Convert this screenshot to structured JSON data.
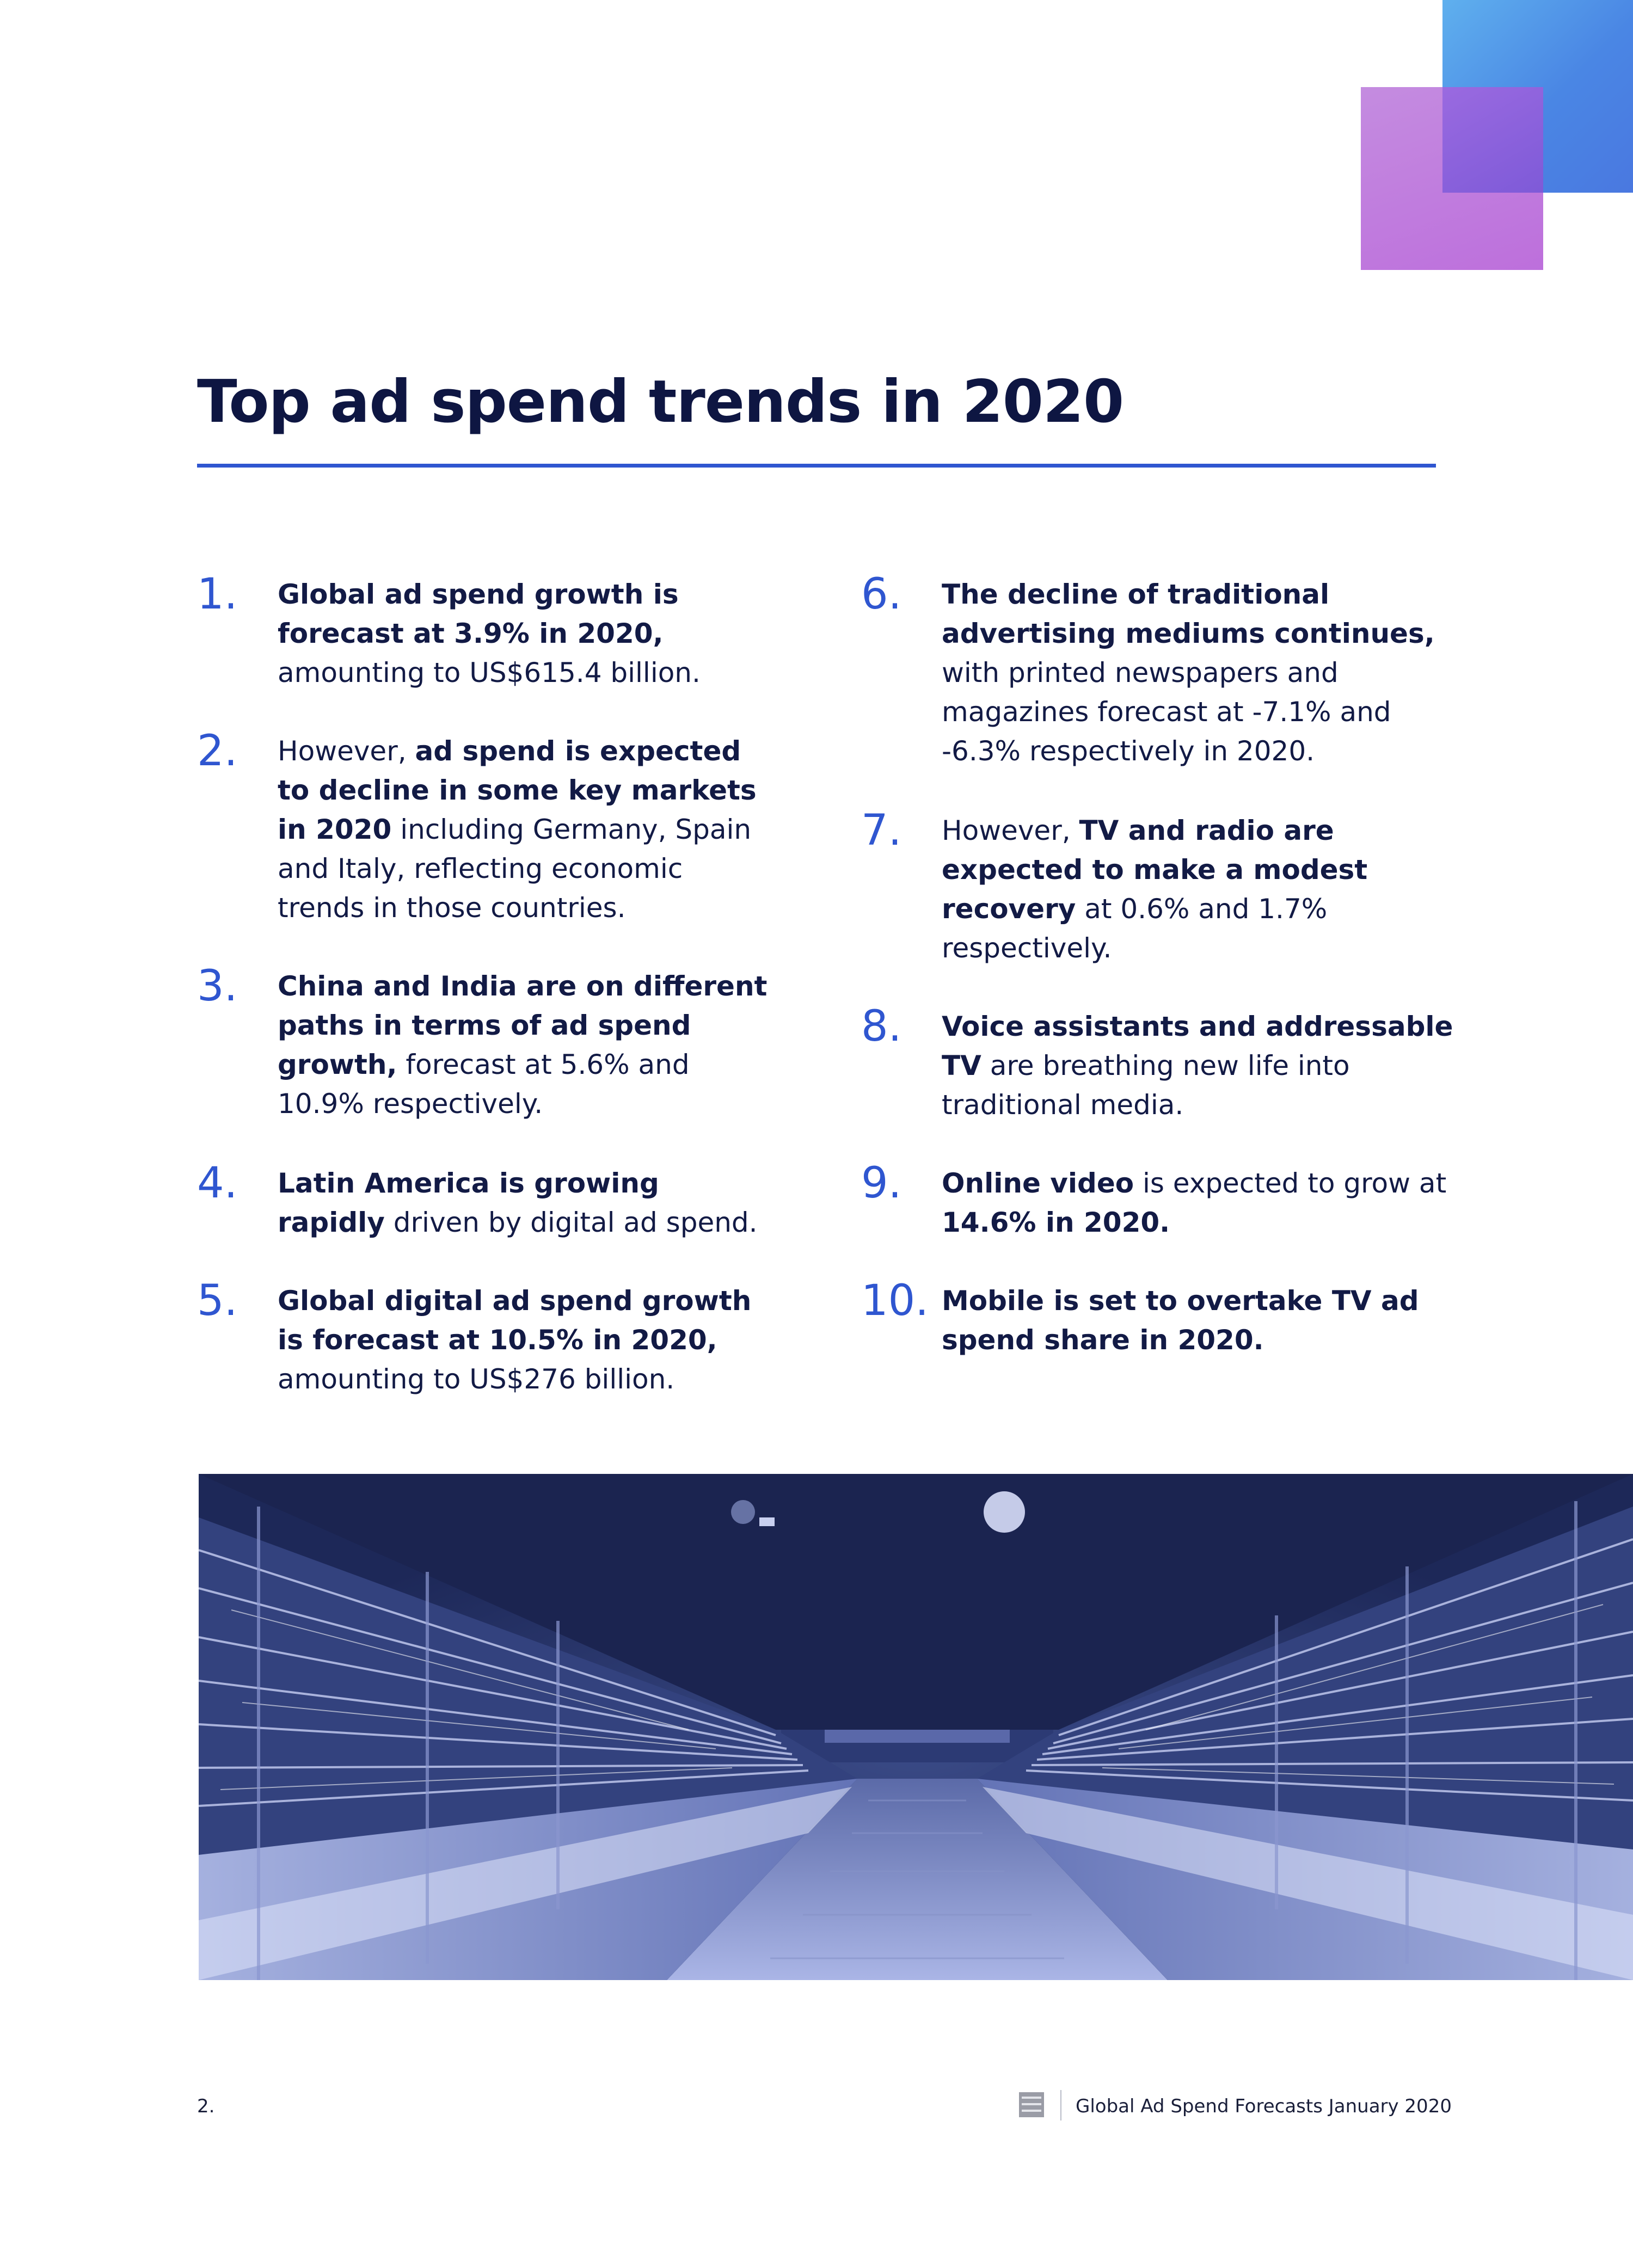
{
  "colors": {
    "accent_blue": "#2f56d0",
    "heading_navy": "#0e1642",
    "square_blue": "#4a86e4",
    "square_violet": "#bd6fdc",
    "photo_tint": "#1e2a5e"
  },
  "title": "Top ad spend trends in 2020",
  "trends": [
    {
      "number": "1.",
      "bold_a": "Global ad spend growth is forecast at 3.9% in 2020,",
      "text_a": " amounting to US$615.4 billion.",
      "bold_b": "",
      "text_b": ""
    },
    {
      "number": "2.",
      "pre": "However, ",
      "bold_a": "ad spend is expected to decline in some key markets in 2020",
      "text_a": " including Germany, Spain and Italy, reflecting economic trends in those countries.",
      "bold_b": "",
      "text_b": ""
    },
    {
      "number": "3.",
      "bold_a": "China and India are on different paths in terms of ad spend growth,",
      "text_a": " forecast at 5.6% and 10.9% respectively.",
      "bold_b": "",
      "text_b": ""
    },
    {
      "number": "4.",
      "bold_a": "Latin America is growing rapidly",
      "text_a": " driven by digital ad spend.",
      "bold_b": "",
      "text_b": ""
    },
    {
      "number": "5.",
      "bold_a": "Global digital ad spend growth is forecast at 10.5% in 2020,",
      "text_a": " amounting to US$276 billion.",
      "bold_b": "",
      "text_b": ""
    },
    {
      "number": "6.",
      "bold_a": "The decline of traditional advertising mediums continues,",
      "text_a": " with printed newspapers and magazines forecast at -7.1% and -6.3% respectively in 2020.",
      "bold_b": "",
      "text_b": ""
    },
    {
      "number": "7.",
      "pre": "However, ",
      "bold_a": "TV and radio are expected to make a modest recovery",
      "text_a": " at 0.6% and 1.7% respectively.",
      "bold_b": "",
      "text_b": ""
    },
    {
      "number": "8.",
      "bold_a": "Voice assistants and addressable TV",
      "text_a": " are breathing new life into traditional media.",
      "bold_b": "",
      "text_b": ""
    },
    {
      "number": "9.",
      "bold_a": "Online video",
      "text_a": " is expected to grow at ",
      "bold_b": "14.6% in 2020.",
      "text_b": ""
    },
    {
      "number": "10.",
      "bold_a": "Mobile is set to overtake TV ad spend share in 2020.",
      "text_a": "",
      "bold_b": "",
      "text_b": ""
    }
  ],
  "footer": {
    "page_number": "2.",
    "logo_icon": "dentsu-aegis-network-logo-icon",
    "document_title": "Global Ad Spend Forecasts January 2020"
  }
}
